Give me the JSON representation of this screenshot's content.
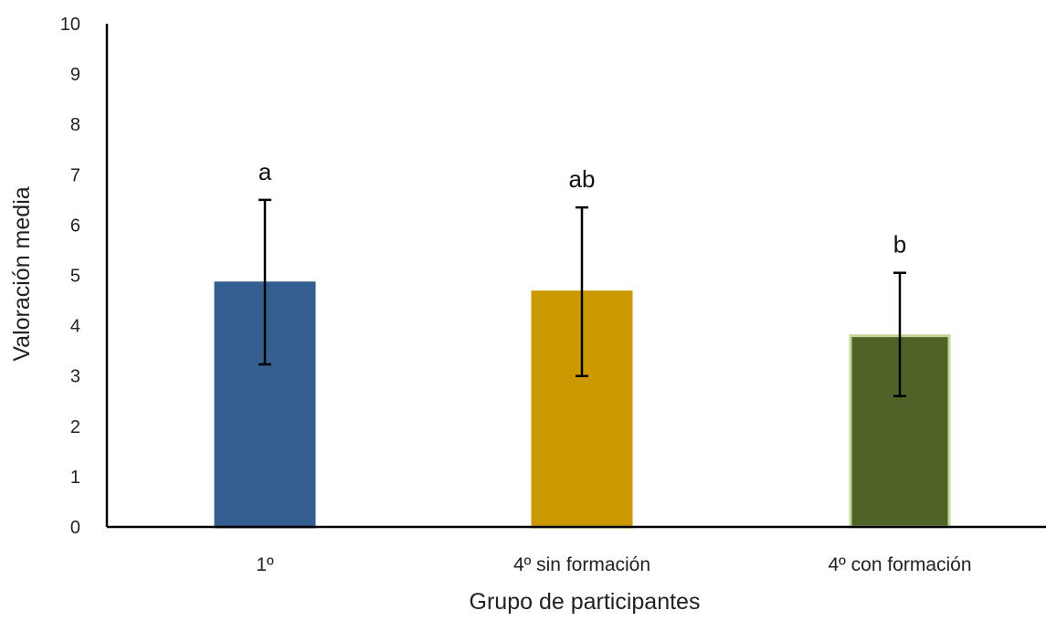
{
  "chart_data": {
    "type": "bar",
    "title": "",
    "xlabel": "Grupo de participantes",
    "ylabel": "Valoración media",
    "ylim": [
      0,
      10
    ],
    "yticks": [
      0,
      1,
      2,
      3,
      4,
      5,
      6,
      7,
      8,
      9,
      10
    ],
    "categories": [
      "1º",
      "4º sin formación",
      "4º con formación"
    ],
    "values": [
      4.85,
      4.67,
      3.8
    ],
    "error_low": [
      3.23,
      3.0,
      2.6
    ],
    "error_high": [
      6.5,
      6.35,
      5.05
    ],
    "significance_labels": [
      "a",
      "ab",
      "b"
    ],
    "colors": [
      "#365F91",
      "#CC9900",
      "#4F6228"
    ],
    "bar_edge_colors": [
      "#365F91",
      "#CC9900",
      "#C3D69B"
    ],
    "grid": false,
    "legend": "none"
  }
}
